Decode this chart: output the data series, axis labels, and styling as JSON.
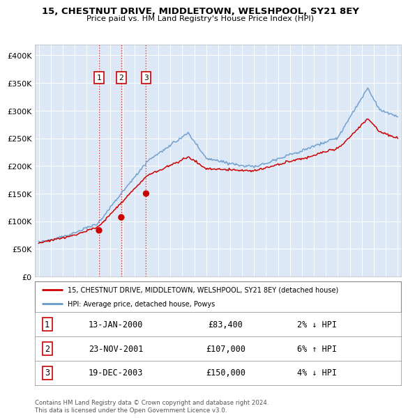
{
  "title": "15, CHESTNUT DRIVE, MIDDLETOWN, WELSHPOOL, SY21 8EY",
  "subtitle": "Price paid vs. HM Land Registry's House Price Index (HPI)",
  "bg_color": "#dce8f5",
  "sale_dates_num": [
    2000.04,
    2001.9,
    2003.97
  ],
  "sale_prices": [
    83400,
    107000,
    150000
  ],
  "sale_labels": [
    "1",
    "2",
    "3"
  ],
  "vline_color": "#cc0000",
  "hpi_line_color": "#6699cc",
  "price_line_color": "#cc0000",
  "legend_entries": [
    "15, CHESTNUT DRIVE, MIDDLETOWN, WELSHPOOL, SY21 8EY (detached house)",
    "HPI: Average price, detached house, Powys"
  ],
  "table_data": [
    [
      "1",
      "13-JAN-2000",
      "£83,400",
      "2% ↓ HPI"
    ],
    [
      "2",
      "23-NOV-2001",
      "£107,000",
      "6% ↑ HPI"
    ],
    [
      "3",
      "19-DEC-2003",
      "£150,000",
      "4% ↓ HPI"
    ]
  ],
  "footer_text": "Contains HM Land Registry data © Crown copyright and database right 2024.\nThis data is licensed under the Open Government Licence v3.0.",
  "ylim": [
    0,
    420000
  ],
  "yticks": [
    0,
    50000,
    100000,
    150000,
    200000,
    250000,
    300000,
    350000,
    400000
  ],
  "ytick_labels": [
    "£0",
    "£50K",
    "£100K",
    "£150K",
    "£200K",
    "£250K",
    "£300K",
    "£350K",
    "£400K"
  ],
  "xlim_start": 1994.7,
  "xlim_end": 2025.3,
  "xticks": [
    1995,
    1996,
    1997,
    1998,
    1999,
    2000,
    2001,
    2002,
    2003,
    2004,
    2005,
    2006,
    2007,
    2008,
    2009,
    2010,
    2011,
    2012,
    2013,
    2014,
    2015,
    2016,
    2017,
    2018,
    2019,
    2020,
    2021,
    2022,
    2023,
    2024,
    2025
  ]
}
